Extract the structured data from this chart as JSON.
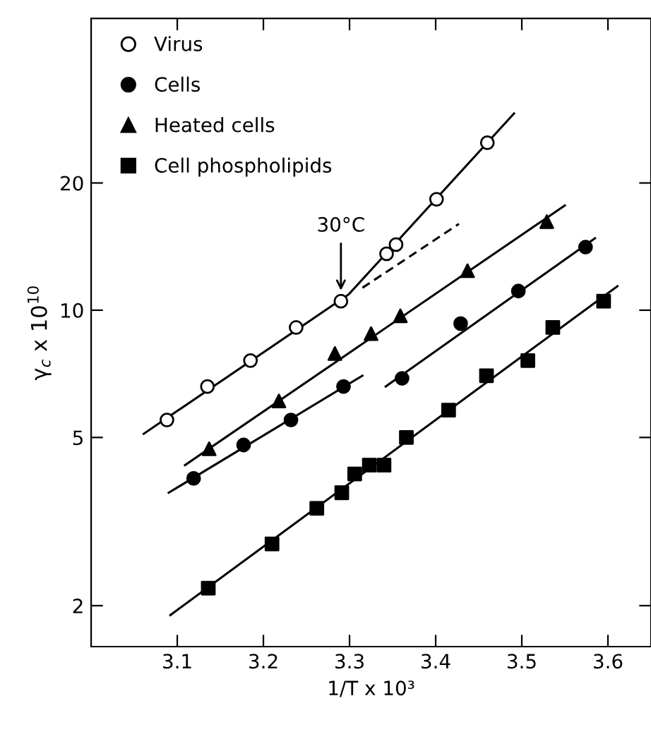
{
  "chart_data": {
    "type": "scatter",
    "xlabel": "1/T x 10³",
    "ylabel": "γ$_{c}$ x 10$^{10}$",
    "log": "y",
    "xlim": [
      3.0,
      3.65
    ],
    "ylim": [
      1.6,
      49
    ],
    "xticks": [
      3.1,
      3.2,
      3.3,
      3.4,
      3.5,
      3.6
    ],
    "yticks": [
      2,
      5,
      10,
      20
    ],
    "grid": false,
    "legend": "top left",
    "annotations": [
      {
        "text": "30°C",
        "x": 3.29,
        "y": 10.9
      }
    ],
    "series": [
      {
        "name": "Virus",
        "marker": "circle",
        "color": "#ffffff",
        "x": [
          3.088,
          3.135,
          3.185,
          3.238,
          3.29,
          3.343,
          3.354,
          3.401,
          3.46
        ],
        "values": [
          5.5,
          6.6,
          7.6,
          9.1,
          10.5,
          13.6,
          14.3,
          18.3,
          24.9
        ]
      },
      {
        "name": "Cells",
        "marker": "circle",
        "color": "#000000",
        "x": [
          3.119,
          3.177,
          3.232,
          3.293,
          3.361,
          3.429,
          3.496,
          3.574
        ],
        "values": [
          4.0,
          4.8,
          5.5,
          6.6,
          6.9,
          9.3,
          11.1,
          14.1
        ]
      },
      {
        "name": "Heated cells",
        "marker": "triangle",
        "color": "#000000",
        "x": [
          3.137,
          3.218,
          3.283,
          3.325,
          3.359,
          3.437,
          3.529
        ],
        "values": [
          4.7,
          6.1,
          7.9,
          8.8,
          9.7,
          12.4,
          16.2
        ]
      },
      {
        "name": "Cell phospholipids",
        "marker": "square",
        "color": "#000000",
        "x": [
          3.136,
          3.21,
          3.262,
          3.291,
          3.306,
          3.323,
          3.34,
          3.366,
          3.415,
          3.459,
          3.507,
          3.536,
          3.595
        ],
        "values": [
          2.2,
          2.8,
          3.4,
          3.7,
          4.1,
          4.3,
          4.3,
          5.0,
          5.8,
          7.0,
          7.6,
          9.1,
          10.5
        ]
      },
      {
        "type": "line",
        "marker": "none",
        "line_style": "solid",
        "color": "#000000",
        "x": [
          3.061,
          3.299,
          3.491
        ],
        "values": [
          5.1,
          10.9,
          29.2
        ]
      },
      {
        "type": "line",
        "marker": "none",
        "line_style": "dashed",
        "color": "#000000",
        "x": [
          3.315,
          3.427
        ],
        "values": [
          11.3,
          16.0
        ]
      },
      {
        "type": "line",
        "marker": "none",
        "line_style": "solid",
        "color": "#000000",
        "x": [
          3.109,
          3.55
        ],
        "values": [
          4.3,
          17.7
        ]
      },
      {
        "type": "line",
        "marker": "none",
        "line_style": "solid",
        "color": "#000000",
        "x": [
          3.09,
          3.315
        ],
        "values": [
          3.7,
          7.0
        ]
      },
      {
        "type": "line",
        "marker": "none",
        "line_style": "solid",
        "color": "#000000",
        "x": [
          3.342,
          3.585
        ],
        "values": [
          6.6,
          14.8
        ]
      },
      {
        "type": "line",
        "marker": "none",
        "line_style": "solid",
        "color": "#000000",
        "x": [
          3.092,
          3.611
        ],
        "values": [
          1.9,
          11.4
        ]
      }
    ]
  }
}
